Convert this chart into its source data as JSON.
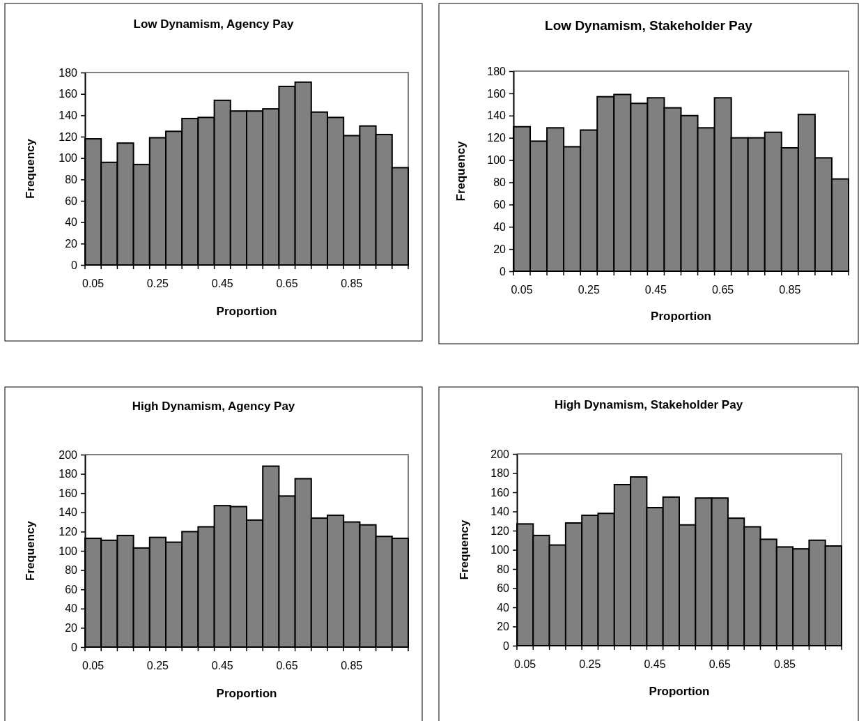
{
  "chart_data": [
    {
      "type": "bar",
      "title": "Low Dynamism, Agency Pay",
      "xlabel": "Proportion",
      "ylabel": "Frequency",
      "categories": [
        "0.05",
        null,
        null,
        null,
        "0.25",
        null,
        null,
        null,
        "0.45",
        null,
        null,
        null,
        "0.65",
        null,
        null,
        null,
        "0.85",
        null,
        null,
        null
      ],
      "values": [
        118,
        96,
        114,
        94,
        119,
        125,
        137,
        138,
        154,
        144,
        144,
        146,
        167,
        171,
        143,
        138,
        121,
        130,
        122,
        91
      ],
      "color": "#808080",
      "ylim": [
        0,
        180
      ],
      "yticks": [
        0,
        20,
        40,
        60,
        80,
        100,
        120,
        140,
        160,
        180
      ],
      "grid": false
    },
    {
      "type": "bar",
      "title": "Low Dynamism, Stakeholder Pay",
      "xlabel": "Proportion",
      "ylabel": "Frequency",
      "categories": [
        "0.05",
        null,
        null,
        null,
        "0.25",
        null,
        null,
        null,
        "0.45",
        null,
        null,
        null,
        "0.65",
        null,
        null,
        null,
        "0.85",
        null,
        null,
        null
      ],
      "values": [
        130,
        117,
        129,
        112,
        127,
        157,
        159,
        151,
        156,
        147,
        140,
        129,
        156,
        120,
        120,
        125,
        111,
        141,
        102,
        83
      ],
      "color": "#808080",
      "ylim": [
        0,
        180
      ],
      "yticks": [
        0,
        20,
        40,
        60,
        80,
        100,
        120,
        140,
        160,
        180
      ],
      "grid": false
    },
    {
      "type": "bar",
      "title": "High Dynamism, Agency Pay",
      "xlabel": "Proportion",
      "ylabel": "Frequency",
      "categories": [
        "0.05",
        null,
        null,
        null,
        "0.25",
        null,
        null,
        null,
        "0.45",
        null,
        null,
        null,
        "0.65",
        null,
        null,
        null,
        "0.85",
        null,
        null,
        null
      ],
      "values": [
        113,
        111,
        116,
        103,
        114,
        109,
        120,
        125,
        147,
        146,
        132,
        188,
        157,
        175,
        134,
        137,
        130,
        127,
        115,
        113
      ],
      "color": "#808080",
      "ylim": [
        0,
        200
      ],
      "yticks": [
        0,
        20,
        40,
        60,
        80,
        100,
        120,
        140,
        160,
        180,
        200
      ],
      "grid": false
    },
    {
      "type": "bar",
      "title": "High Dynamism, Stakeholder Pay",
      "xlabel": "Proportion",
      "ylabel": "Frequency",
      "categories": [
        "0.05",
        null,
        null,
        null,
        "0.25",
        null,
        null,
        null,
        "0.45",
        null,
        null,
        null,
        "0.65",
        null,
        null,
        null,
        "0.85",
        null,
        null,
        null
      ],
      "values": [
        127,
        115,
        105,
        128,
        136,
        138,
        168,
        176,
        144,
        155,
        126,
        154,
        154,
        133,
        124,
        111,
        103,
        101,
        110,
        104
      ],
      "color": "#808080",
      "ylim": [
        0,
        200
      ],
      "yticks": [
        0,
        20,
        40,
        60,
        80,
        100,
        120,
        140,
        160,
        180,
        200
      ],
      "grid": false
    }
  ]
}
